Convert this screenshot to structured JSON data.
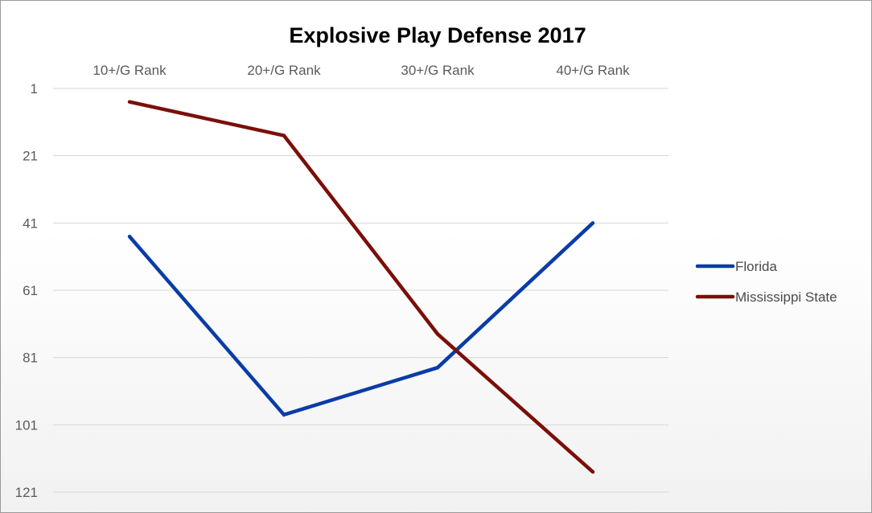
{
  "chart_data": {
    "type": "line",
    "title": "Explosive Play Defense 2017",
    "xlabel": "",
    "ylabel": "",
    "categories": [
      "10+/G Rank",
      "20+/G Rank",
      "30+/G Rank",
      "40+/G Rank"
    ],
    "x_axis_position": "top",
    "y_axis": {
      "reversed": true,
      "min": 1,
      "max": 121,
      "ticks": [
        "1",
        "21",
        "41",
        "61",
        "81",
        "101",
        "121"
      ]
    },
    "grid": true,
    "legend_position": "right",
    "series": [
      {
        "name": "Florida",
        "color": "#0a3ca8",
        "values": [
          45,
          98,
          84,
          41
        ]
      },
      {
        "name": "Mississippi State",
        "color": "#7a0f08",
        "values": [
          5,
          15,
          74,
          115
        ]
      }
    ]
  }
}
